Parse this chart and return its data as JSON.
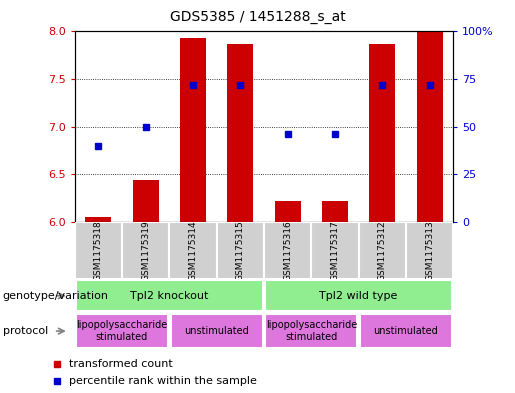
{
  "title": "GDS5385 / 1451288_s_at",
  "samples": [
    "GSM1175318",
    "GSM1175319",
    "GSM1175314",
    "GSM1175315",
    "GSM1175316",
    "GSM1175317",
    "GSM1175312",
    "GSM1175313"
  ],
  "transformed_count": [
    6.05,
    6.44,
    7.93,
    7.87,
    6.22,
    6.22,
    7.87,
    8.0
  ],
  "percentile_rank": [
    40,
    50,
    72,
    72,
    46,
    46,
    72,
    72
  ],
  "ylim_left": [
    6,
    8
  ],
  "ylim_right": [
    0,
    100
  ],
  "baseline": 6,
  "bar_color": "#cc0000",
  "dot_color": "#0000cc",
  "bar_width": 0.55,
  "yticks_left": [
    6,
    6.5,
    7,
    7.5,
    8
  ],
  "yticks_right": [
    0,
    25,
    50,
    75,
    100
  ],
  "ytick_labels_right": [
    "0",
    "25",
    "50",
    "75",
    "100%"
  ],
  "genotype_groups": [
    {
      "label": "Tpl2 knockout",
      "start": 0,
      "end": 4,
      "color": "#90ee90"
    },
    {
      "label": "Tpl2 wild type",
      "start": 4,
      "end": 8,
      "color": "#90ee90"
    }
  ],
  "protocol_groups": [
    {
      "label": "lipopolysaccharide\nstimulated",
      "start": 0,
      "end": 2,
      "color": "#dd77dd"
    },
    {
      "label": "unstimulated",
      "start": 2,
      "end": 4,
      "color": "#dd77dd"
    },
    {
      "label": "lipopolysaccharide\nstimulated",
      "start": 4,
      "end": 6,
      "color": "#dd77dd"
    },
    {
      "label": "unstimulated",
      "start": 6,
      "end": 8,
      "color": "#dd77dd"
    }
  ],
  "legend_red_label": "transformed count",
  "legend_blue_label": "percentile rank within the sample",
  "genotype_label": "genotype/variation",
  "protocol_label": "protocol",
  "left_ytick_color": "#cc0000",
  "right_ytick_color": "#0000cc",
  "grid_linestyle": "dotted",
  "sample_bg_color": "#d0d0d0",
  "title_fontsize": 10,
  "tick_fontsize": 8,
  "label_fontsize": 8,
  "sample_fontsize": 6.5,
  "group_fontsize": 8,
  "proto_fontsize": 7
}
